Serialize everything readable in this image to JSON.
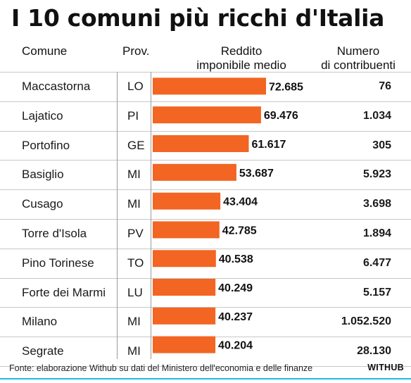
{
  "title": "I 10 comuni più ricchi d'Italia",
  "headers": {
    "comune": "Comune",
    "prov": "Prov.",
    "reddito_line1": "Reddito",
    "reddito_line2": "imponibile medio",
    "numero_line1": "Numero",
    "numero_line2": "di contribuenti"
  },
  "rows": [
    {
      "comune": "Maccastorna",
      "prov": "LO",
      "reddito": "72.685",
      "contribuenti": "76"
    },
    {
      "comune": "Lajatico",
      "prov": "PI",
      "reddito": "69.476",
      "contribuenti": "1.034"
    },
    {
      "comune": "Portofino",
      "prov": "GE",
      "reddito": "61.617",
      "contribuenti": "305"
    },
    {
      "comune": "Basiglio",
      "prov": "MI",
      "reddito": "53.687",
      "contribuenti": "5.923"
    },
    {
      "comune": "Cusago",
      "prov": "MI",
      "reddito": "43.404",
      "contribuenti": "3.698"
    },
    {
      "comune": "Torre d'Isola",
      "prov": "PV",
      "reddito": "42.785",
      "contribuenti": "1.894"
    },
    {
      "comune": "Pino Torinese",
      "prov": "TO",
      "reddito": "40.538",
      "contribuenti": "6.477"
    },
    {
      "comune": "Forte dei Marmi",
      "prov": "LU",
      "reddito": "40.249",
      "contribuenti": "5.157"
    },
    {
      "comune": "Milano",
      "prov": "MI",
      "reddito": "40.237",
      "contribuenti": "1.052.520"
    },
    {
      "comune": "Segrate",
      "prov": "MI",
      "reddito": "40.204",
      "contribuenti": "28.130"
    }
  ],
  "chart_data": {
    "type": "bar",
    "orientation": "horizontal",
    "categories": [
      "Maccastorna",
      "Lajatico",
      "Portofino",
      "Basiglio",
      "Cusago",
      "Torre d'Isola",
      "Pino Torinese",
      "Forte dei Marmi",
      "Milano",
      "Segrate"
    ],
    "values": [
      72685,
      69476,
      61617,
      53687,
      43404,
      42785,
      40538,
      40249,
      40237,
      40204
    ],
    "value_labels": [
      "72.685",
      "69.476",
      "61.617",
      "53.687",
      "43.404",
      "42.785",
      "40.538",
      "40.249",
      "40.237",
      "40.204"
    ],
    "bar_color": "#f26522",
    "grid": false
  },
  "colors": {
    "bar": "#f26522",
    "accent_rule": "#1fb8e6",
    "separator": "#c7c7c7"
  },
  "source": "Fonte: elaborazione Withub su dati del Ministero dell'economia e delle finanze",
  "brand": "WITHUB"
}
